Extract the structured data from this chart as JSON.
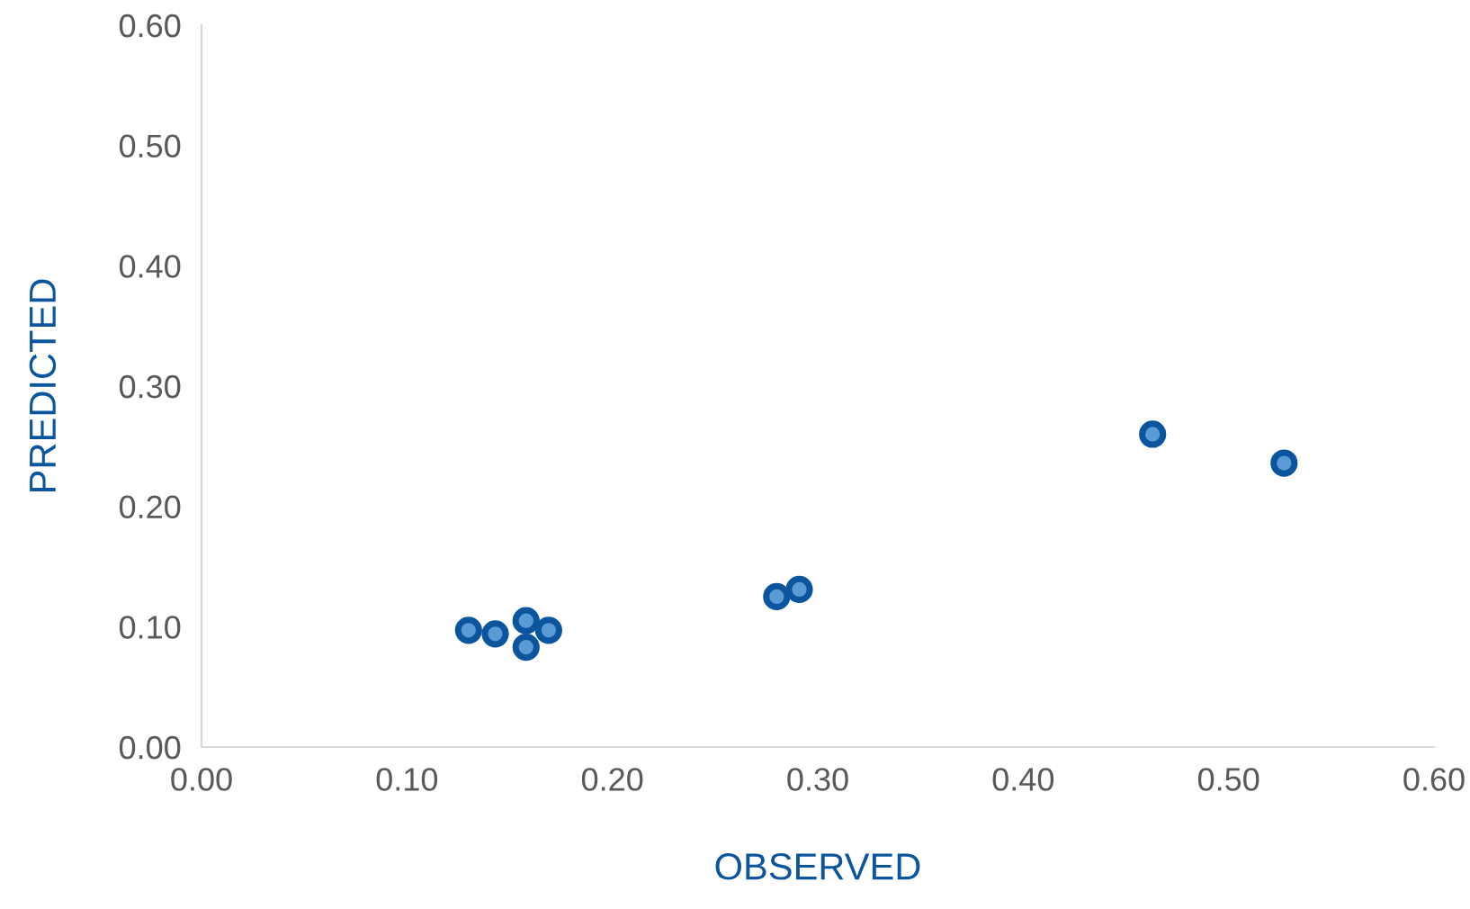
{
  "chart_data": {
    "type": "scatter",
    "xlabel": "OBSERVED",
    "ylabel": "PREDICTED",
    "x": [
      0.13,
      0.143,
      0.158,
      0.158,
      0.169,
      0.28,
      0.291,
      0.463,
      0.527
    ],
    "values": [
      0.097,
      0.094,
      0.105,
      0.083,
      0.097,
      0.125,
      0.131,
      0.26,
      0.236
    ],
    "color": "#0b559f",
    "marker": "circle",
    "xlim": [
      0,
      0.6
    ],
    "ylim": [
      0,
      0.6
    ],
    "xticks": [
      {
        "value": 0,
        "label": "0.00"
      },
      {
        "value": 0.1,
        "label": "0.10"
      },
      {
        "value": 0.2,
        "label": "0.20"
      },
      {
        "value": 0.3,
        "label": "0.30"
      },
      {
        "value": 0.4,
        "label": "0.40"
      },
      {
        "value": 0.5,
        "label": "0.50"
      },
      {
        "value": 0.6,
        "label": "0.60"
      }
    ],
    "yticks": [
      {
        "value": 0,
        "label": "0.00"
      },
      {
        "value": 0.1,
        "label": "0.10"
      },
      {
        "value": 0.2,
        "label": "0.20"
      },
      {
        "value": 0.3,
        "label": "0.30"
      },
      {
        "value": 0.4,
        "label": "0.40"
      },
      {
        "value": 0.5,
        "label": "0.50"
      },
      {
        "value": 0.6,
        "label": "0.60"
      }
    ],
    "grid": false
  }
}
